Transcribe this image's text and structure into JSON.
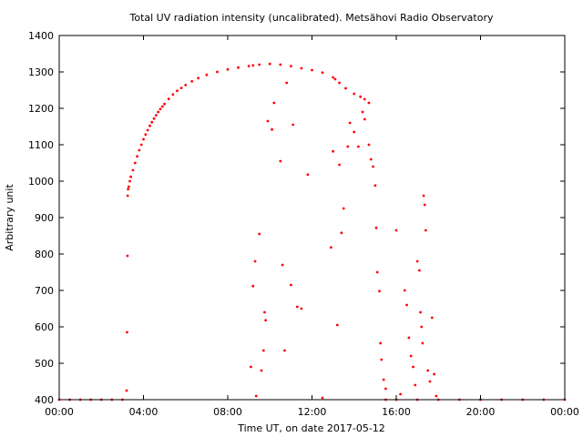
{
  "chart_data": {
    "type": "scatter",
    "title": "Total UV radiation intensity (uncalibrated). Metsähovi Radio Observatory",
    "xlabel": "Time UT, on date 2017-05-12",
    "ylabel": "Arbitrary unit",
    "xlim": [
      0,
      24
    ],
    "ylim": [
      400,
      1400
    ],
    "x_ticks": [
      {
        "value": 0,
        "label": "00:00"
      },
      {
        "value": 4,
        "label": "04:00"
      },
      {
        "value": 8,
        "label": "08:00"
      },
      {
        "value": 12,
        "label": "12:00"
      },
      {
        "value": 16,
        "label": "16:00"
      },
      {
        "value": 20,
        "label": "20:00"
      },
      {
        "value": 24,
        "label": "00:00"
      }
    ],
    "y_ticks": [
      {
        "value": 400,
        "label": "400"
      },
      {
        "value": 500,
        "label": "500"
      },
      {
        "value": 600,
        "label": "600"
      },
      {
        "value": 700,
        "label": "700"
      },
      {
        "value": 800,
        "label": "800"
      },
      {
        "value": 900,
        "label": "900"
      },
      {
        "value": 1000,
        "label": "1000"
      },
      {
        "value": 1100,
        "label": "1100"
      },
      {
        "value": 1200,
        "label": "1200"
      },
      {
        "value": 1300,
        "label": "1300"
      },
      {
        "value": 1400,
        "label": "1400"
      }
    ],
    "grid": false,
    "color": "#ff0000",
    "series": [
      {
        "points": [
          [
            0.0,
            400
          ],
          [
            0.5,
            400
          ],
          [
            1.0,
            400
          ],
          [
            1.5,
            400
          ],
          [
            2.0,
            400
          ],
          [
            2.5,
            400
          ],
          [
            3.0,
            400
          ],
          [
            3.2,
            425
          ],
          [
            3.22,
            585
          ],
          [
            3.24,
            795
          ],
          [
            3.25,
            960
          ],
          [
            3.27,
            978
          ],
          [
            3.3,
            985
          ],
          [
            3.35,
            1000
          ],
          [
            3.4,
            1012
          ],
          [
            3.5,
            1030
          ],
          [
            3.6,
            1050
          ],
          [
            3.7,
            1068
          ],
          [
            3.8,
            1085
          ],
          [
            3.9,
            1100
          ],
          [
            4.0,
            1115
          ],
          [
            4.1,
            1128
          ],
          [
            4.2,
            1140
          ],
          [
            4.3,
            1152
          ],
          [
            4.4,
            1162
          ],
          [
            4.5,
            1172
          ],
          [
            4.6,
            1181
          ],
          [
            4.7,
            1190
          ],
          [
            4.8,
            1198
          ],
          [
            4.9,
            1205
          ],
          [
            5.0,
            1212
          ],
          [
            5.2,
            1226
          ],
          [
            5.4,
            1238
          ],
          [
            5.6,
            1248
          ],
          [
            5.8,
            1256
          ],
          [
            6.0,
            1264
          ],
          [
            6.3,
            1274
          ],
          [
            6.6,
            1283
          ],
          [
            7.0,
            1292
          ],
          [
            7.5,
            1300
          ],
          [
            8.0,
            1307
          ],
          [
            8.5,
            1312
          ],
          [
            9.0,
            1316
          ],
          [
            9.2,
            1318
          ],
          [
            9.5,
            1320
          ],
          [
            10.0,
            1322
          ],
          [
            10.5,
            1320
          ],
          [
            11.0,
            1316
          ],
          [
            11.5,
            1310
          ],
          [
            12.0,
            1305
          ],
          [
            12.5,
            1298
          ],
          [
            13.0,
            1285
          ],
          [
            13.3,
            1270
          ],
          [
            13.6,
            1255
          ],
          [
            14.0,
            1240
          ],
          [
            14.3,
            1232
          ],
          [
            14.5,
            1225
          ],
          [
            14.7,
            1215
          ],
          [
            9.1,
            490
          ],
          [
            9.2,
            712
          ],
          [
            9.3,
            780
          ],
          [
            9.35,
            410
          ],
          [
            9.5,
            855
          ],
          [
            9.6,
            480
          ],
          [
            9.7,
            535
          ],
          [
            9.75,
            640
          ],
          [
            9.8,
            618
          ],
          [
            9.9,
            1165
          ],
          [
            10.1,
            1142
          ],
          [
            10.2,
            1215
          ],
          [
            10.5,
            1055
          ],
          [
            10.6,
            770
          ],
          [
            10.7,
            535
          ],
          [
            10.8,
            1270
          ],
          [
            11.0,
            715
          ],
          [
            11.1,
            1155
          ],
          [
            11.3,
            655
          ],
          [
            11.5,
            650
          ],
          [
            11.8,
            1018
          ],
          [
            12.5,
            405
          ],
          [
            12.9,
            818
          ],
          [
            13.0,
            1082
          ],
          [
            13.1,
            1280
          ],
          [
            13.2,
            605
          ],
          [
            13.3,
            1045
          ],
          [
            13.4,
            858
          ],
          [
            13.5,
            925
          ],
          [
            13.7,
            1095
          ],
          [
            13.8,
            1160
          ],
          [
            14.0,
            1135
          ],
          [
            14.2,
            1095
          ],
          [
            14.4,
            1190
          ],
          [
            14.5,
            1170
          ],
          [
            14.7,
            1100
          ],
          [
            14.8,
            1060
          ],
          [
            14.9,
            1040
          ],
          [
            15.0,
            988
          ],
          [
            15.05,
            872
          ],
          [
            15.1,
            750
          ],
          [
            15.2,
            698
          ],
          [
            15.25,
            555
          ],
          [
            15.3,
            510
          ],
          [
            15.4,
            455
          ],
          [
            15.5,
            430
          ],
          [
            16.0,
            865
          ],
          [
            16.2,
            415
          ],
          [
            16.4,
            700
          ],
          [
            16.5,
            660
          ],
          [
            16.6,
            570
          ],
          [
            16.7,
            520
          ],
          [
            16.8,
            490
          ],
          [
            16.9,
            440
          ],
          [
            17.0,
            780
          ],
          [
            17.1,
            755
          ],
          [
            17.15,
            640
          ],
          [
            17.2,
            600
          ],
          [
            17.25,
            555
          ],
          [
            17.3,
            960
          ],
          [
            17.35,
            935
          ],
          [
            17.4,
            865
          ],
          [
            17.5,
            480
          ],
          [
            17.6,
            450
          ],
          [
            17.7,
            625
          ],
          [
            17.8,
            470
          ],
          [
            17.9,
            410
          ],
          [
            15.5,
            400
          ],
          [
            16.0,
            400
          ],
          [
            17.0,
            400
          ],
          [
            18.0,
            400
          ],
          [
            19.0,
            400
          ],
          [
            20.0,
            400
          ],
          [
            21.0,
            400
          ],
          [
            22.0,
            400
          ],
          [
            23.0,
            400
          ],
          [
            24.0,
            400
          ]
        ]
      }
    ]
  }
}
